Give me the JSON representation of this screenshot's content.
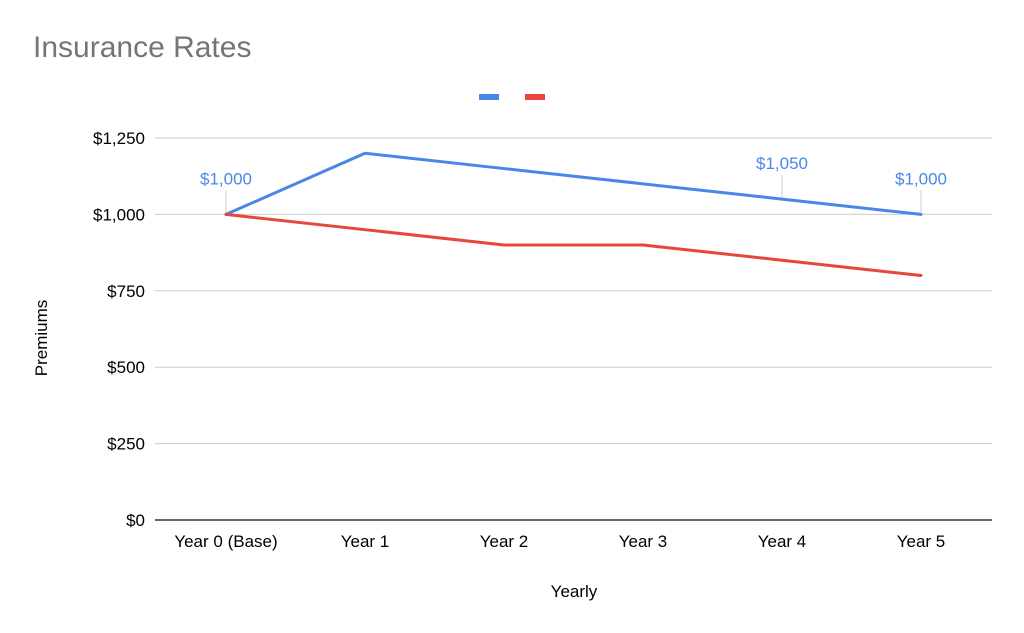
{
  "chart_data": {
    "type": "line",
    "title": "Insurance Rates",
    "xlabel": "Yearly",
    "ylabel": "Premiums",
    "categories": [
      "Year 0 (Base)",
      "Year 1",
      "Year 2",
      "Year 3",
      "Year 4",
      "Year 5"
    ],
    "ylim": [
      0,
      1250
    ],
    "yticks": [
      0,
      250,
      500,
      750,
      1000,
      1250
    ],
    "ytick_labels": [
      "$0",
      "$250",
      "$500",
      "$750",
      "$1,000",
      "$1,250"
    ],
    "grid": true,
    "legend": "top",
    "series": [
      {
        "color": "#4a86e8",
        "values": [
          1000,
          1200,
          1150,
          1100,
          1050,
          1000
        ],
        "data_labels": [
          {
            "index": 0,
            "text": "$1,000"
          },
          {
            "index": 4,
            "text": "$1,050"
          },
          {
            "index": 5,
            "text": "$1,000"
          }
        ]
      },
      {
        "color": "#e8453c",
        "values": [
          1000,
          950,
          900,
          900,
          850,
          800
        ],
        "data_labels": []
      }
    ]
  }
}
